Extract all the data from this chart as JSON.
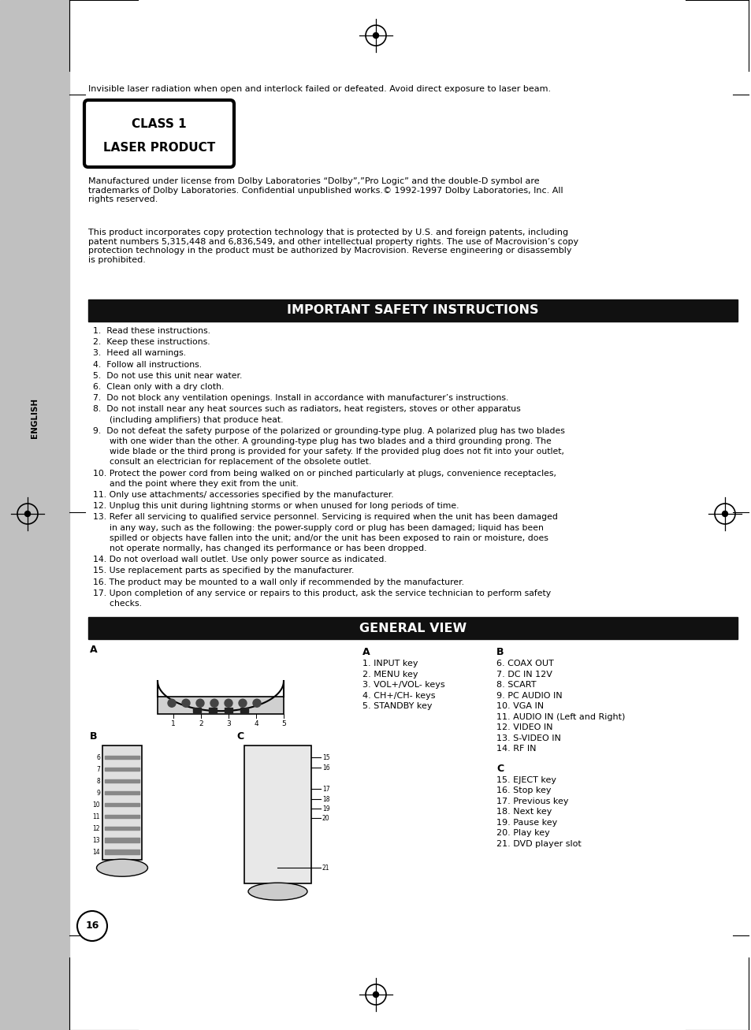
{
  "bg_color": "#ffffff",
  "sidebar_color": "#c0c0c0",
  "top_text": "Invisible laser radiation when open and interlock failed or defeated. Avoid direct exposure to laser beam.",
  "class_line1": "CLASS 1",
  "class_line2": "LASER PRODUCT",
  "dolby_text": "Manufactured under license from Dolby Laboratories “Dolby”,”Pro Logic” and the double-D symbol are\ntrademarks of Dolby Laboratories. Confidential unpublished works.© 1992-1997 Dolby Laboratories, Inc. All\nrights reserved.",
  "macrovision_text": "This product incorporates copy protection technology that is protected by U.S. and foreign patents, including\npatent numbers 5,315,448 and 6,836,549, and other intellectual property rights. The use of Macrovision’s copy\nprotection technology in the product must be authorized by Macrovision. Reverse engineering or disassembly\nis prohibited.",
  "safety_header": "IMPORTANT SAFETY INSTRUCTIONS",
  "safety_header_bg": "#111111",
  "safety_header_color": "#ffffff",
  "safety_items": [
    "1.  Read these instructions.",
    "2.  Keep these instructions.",
    "3.  Heed all warnings.",
    "4.  Follow all instructions.",
    "5.  Do not use this unit near water.",
    "6.  Clean only with a dry cloth.",
    "7.  Do not block any ventilation openings. Install in accordance with manufacturer’s instructions.",
    "8.  Do not install near any heat sources such as radiators, heat registers, stoves or other apparatus\n      (including amplifiers) that produce heat.",
    "9.  Do not defeat the safety purpose of the polarized or grounding-type plug. A polarized plug has two blades\n      with one wider than the other. A grounding-type plug has two blades and a third grounding prong. The\n      wide blade or the third prong is provided for your safety. If the provided plug does not fit into your outlet,\n      consult an electrician for replacement of the obsolete outlet.",
    "10. Protect the power cord from being walked on or pinched particularly at plugs, convenience receptacles,\n      and the point where they exit from the unit.",
    "11. Only use attachments/ accessories specified by the manufacturer.",
    "12. Unplug this unit during lightning storms or when unused for long periods of time.",
    "13. Refer all servicing to qualified service personnel. Servicing is required when the unit has been damaged\n      in any way, such as the following: the power-supply cord or plug has been damaged; liquid has been\n      spilled or objects have fallen into the unit; and/or the unit has been exposed to rain or moisture, does\n      not operate normally, has changed its performance or has been dropped.",
    "14. Do not overload wall outlet. Use only power source as indicated.",
    "15. Use replacement parts as specified by the manufacturer.",
    "16. The product may be mounted to a wall only if recommended by the manufacturer.",
    "17. Upon completion of any service or repairs to this product, ask the service technician to perform safety\n      checks."
  ],
  "general_view_header": "GENERAL VIEW",
  "general_view_bg": "#111111",
  "general_view_color": "#ffffff",
  "col_a_header": "A",
  "col_a_items": [
    "1. INPUT key",
    "2. MENU key",
    "3. VOL+/VOL- keys",
    "4. CH+/CH- keys",
    "5. STANDBY key"
  ],
  "col_b_header": "B",
  "col_b_items": [
    "6. COAX OUT",
    "7. DC IN 12V",
    "8. SCART",
    "9. PC AUDIO IN",
    "10. VGA IN",
    "11. AUDIO IN (Left and Right)",
    "12. VIDEO IN",
    "13. S-VIDEO IN",
    "14. RF IN"
  ],
  "col_c_header": "C",
  "col_c_items": [
    "15. EJECT key",
    "16. Stop key",
    "17. Previous key",
    "18. Next key",
    "19. Pause key",
    "20. Play key",
    "21. DVD player slot"
  ],
  "english_label": "ENGLISH",
  "page_number": "16"
}
